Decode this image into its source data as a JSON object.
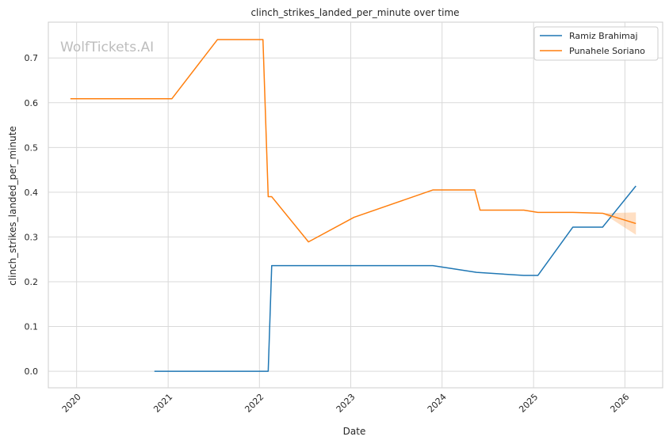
{
  "chart_data": {
    "type": "line",
    "title": "clinch_strikes_landed_per_minute over time",
    "xlabel": "Date",
    "ylabel": "clinch_strikes_landed_per_minute",
    "watermark": "WolfTickets.AI",
    "xlim": [
      "2019-09-10",
      "2026-06-01"
    ],
    "ylim": [
      -0.037,
      0.78
    ],
    "x_ticks": [
      "2020",
      "2021",
      "2022",
      "2023",
      "2024",
      "2025",
      "2026"
    ],
    "y_ticks": [
      "0.0",
      "0.1",
      "0.2",
      "0.3",
      "0.4",
      "0.5",
      "0.6",
      "0.7"
    ],
    "grid": true,
    "legend_position": "top-right",
    "series": [
      {
        "name": "Ramiz Brahimaj",
        "color": "#1f77b4",
        "x": [
          "2020-11-07",
          "2022-02-05",
          "2022-02-19",
          "2023-11-25",
          "2024-05-18",
          "2024-11-23",
          "2025-01-18",
          "2025-06-07",
          "2025-10-04",
          "2026-02-14"
        ],
        "y": [
          0.0,
          0.0,
          0.236,
          0.236,
          0.221,
          0.214,
          0.214,
          0.322,
          0.322,
          0.414
        ]
      },
      {
        "name": "Punahele Soriano",
        "color": "#ff7f0e",
        "x": [
          "2019-12-07",
          "2021-01-16",
          "2021-07-17",
          "2022-01-15",
          "2022-02-05",
          "2022-02-19",
          "2022-07-16",
          "2023-01-14",
          "2023-11-25",
          "2024-05-11",
          "2024-06-01",
          "2024-11-23",
          "2025-01-18",
          "2025-06-07",
          "2025-10-04",
          "2026-02-14"
        ],
        "y": [
          0.609,
          0.609,
          0.741,
          0.741,
          0.39,
          0.39,
          0.289,
          0.344,
          0.405,
          0.405,
          0.36,
          0.36,
          0.355,
          0.355,
          0.353,
          0.33
        ],
        "band": {
          "x": [
            "2025-10-04",
            "2026-02-14"
          ],
          "lower": [
            0.353,
            0.305
          ],
          "upper": [
            0.353,
            0.355
          ]
        }
      }
    ]
  }
}
